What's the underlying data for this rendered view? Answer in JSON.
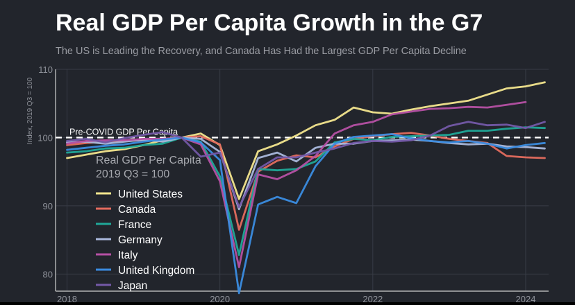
{
  "chart_data": {
    "type": "line",
    "title": "Real GDP Per Capita Growth in the G7",
    "subtitle": "The US is Leading the Recovery, and Canada Has Had the Largest GDP Per Capita Decline",
    "ylabel": "Index, 2019 Q3 = 100",
    "xlabel": "",
    "xlim": [
      2017.85,
      2024.3
    ],
    "ylim": [
      77.5,
      110
    ],
    "xticks": [
      2018,
      2020,
      2022,
      2024
    ],
    "yticks": [
      80,
      90,
      100,
      110
    ],
    "grid": true,
    "reference_line": {
      "y": 100,
      "label": "Pre-COVID GDP Per Capita"
    },
    "legend_title": [
      "Real GDP Per Capita",
      "2019 Q3 = 100"
    ],
    "legend_position": "left",
    "x": [
      2018.0,
      2018.25,
      2018.5,
      2018.75,
      2019.0,
      2019.25,
      2019.5,
      2019.75,
      2020.0,
      2020.25,
      2020.5,
      2020.75,
      2021.0,
      2021.25,
      2021.5,
      2021.75,
      2022.0,
      2022.25,
      2022.5,
      2022.75,
      2023.0,
      2023.25,
      2023.5,
      2023.75,
      2024.0,
      2024.25
    ],
    "series": [
      {
        "name": "United States",
        "color": "#f3e58e",
        "values": [
          97.0,
          97.5,
          98.0,
          98.3,
          98.9,
          99.6,
          100.0,
          100.6,
          98.9,
          91.0,
          98.0,
          99.0,
          100.3,
          101.8,
          102.6,
          104.4,
          103.7,
          103.5,
          104.1,
          104.6,
          105.0,
          105.4,
          106.3,
          107.2,
          107.5,
          108.1
        ]
      },
      {
        "name": "Canada",
        "color": "#e46b5e",
        "values": [
          98.9,
          99.2,
          99.4,
          99.5,
          99.6,
          99.8,
          100.0,
          100.2,
          99.0,
          86.5,
          95.0,
          96.6,
          97.4,
          97.1,
          98.7,
          99.8,
          100.2,
          100.5,
          100.7,
          100.3,
          99.8,
          99.5,
          99.2,
          97.3,
          97.1,
          97.0
        ]
      },
      {
        "name": "France",
        "color": "#20a898",
        "values": [
          97.8,
          98.0,
          98.4,
          98.5,
          98.9,
          99.1,
          100.0,
          99.4,
          94.3,
          82.8,
          95.4,
          95.2,
          95.4,
          96.5,
          99.3,
          99.8,
          99.6,
          100.1,
          100.2,
          100.3,
          100.4,
          101.0,
          101.0,
          101.3,
          101.5,
          101.4
        ]
      },
      {
        "name": "Germany",
        "color": "#aab8dc",
        "values": [
          99.3,
          99.4,
          99.1,
          99.4,
          99.7,
          99.4,
          100.0,
          99.8,
          97.9,
          89.5,
          97.0,
          97.8,
          96.5,
          98.5,
          99.1,
          99.1,
          99.5,
          99.6,
          99.7,
          99.5,
          99.2,
          99.0,
          99.1,
          98.7,
          98.6,
          98.4
        ]
      },
      {
        "name": "Italy",
        "color": "#b650a4",
        "values": [
          99.1,
          99.5,
          99.6,
          99.6,
          99.8,
          99.8,
          100.0,
          99.0,
          93.6,
          81.0,
          94.6,
          93.9,
          95.2,
          97.3,
          100.6,
          101.8,
          102.3,
          103.4,
          103.8,
          104.2,
          104.3,
          104.5,
          104.4,
          104.8,
          105.2,
          null
        ]
      },
      {
        "name": "United Kingdom",
        "color": "#3b8ce0",
        "values": [
          98.2,
          98.5,
          98.8,
          99.0,
          99.4,
          99.7,
          100.0,
          99.3,
          96.7,
          77.2,
          90.2,
          91.3,
          90.4,
          95.8,
          99.1,
          100.1,
          100.3,
          100.5,
          99.9,
          99.5,
          99.3,
          99.5,
          99.1,
          98.4,
          98.9,
          99.2
        ]
      },
      {
        "name": "Japan",
        "color": "#7459a8",
        "values": [
          99.5,
          99.8,
          99.3,
          99.9,
          100.4,
          100.8,
          100.0,
          97.2,
          97.8,
          89.8,
          95.4,
          97.1,
          97.1,
          97.8,
          98.4,
          99.2,
          99.5,
          99.4,
          99.6,
          100.3,
          101.7,
          102.3,
          101.8,
          101.9,
          101.4,
          102.3
        ]
      }
    ],
    "colors": {
      "background": "#22252c",
      "grid": "#383c46",
      "axis_text": "#8f929a",
      "reference_line": "#ffffff"
    }
  }
}
